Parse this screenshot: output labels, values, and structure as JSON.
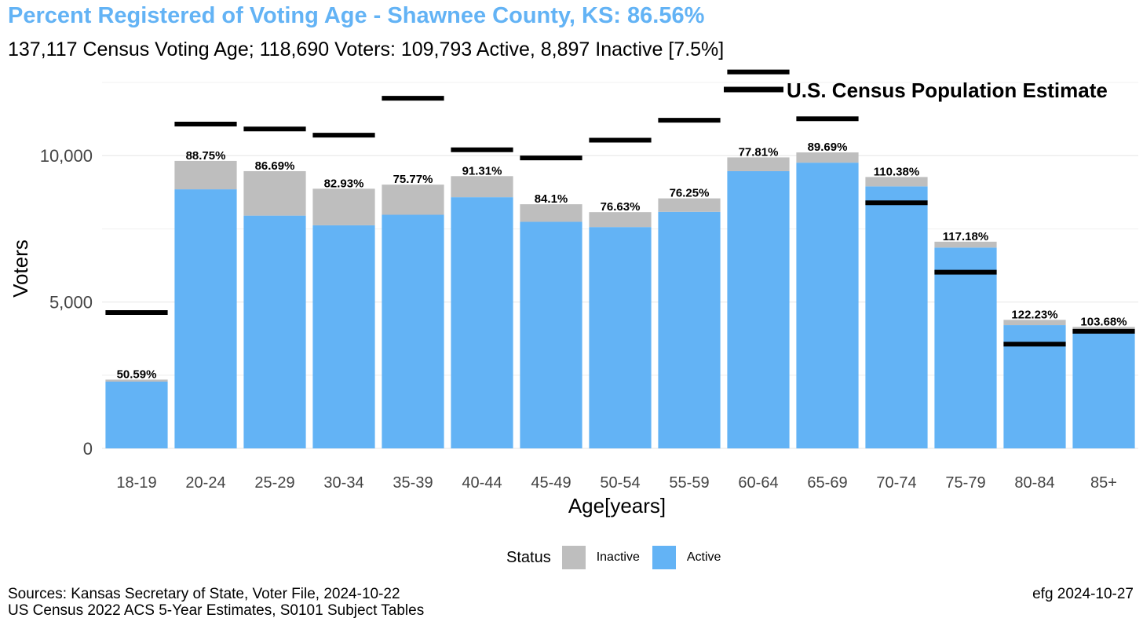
{
  "title": "Percent Registered of Voting Age - Shawnee County, KS: 86.56%",
  "subtitle": "137,117 Census Voting Age; 118,690 Voters:  109,793 Active, 8,897 Inactive [7.5%]",
  "legend": {
    "title": "Status",
    "items": [
      {
        "label": "Inactive",
        "color": "#BEBEBE"
      },
      {
        "label": "Active",
        "color": "#63B3F5"
      }
    ],
    "census_label": "U.S. Census Population Estimate"
  },
  "sources": [
    "Sources: Kansas Secretary of State, Voter File, 2024-10-22",
    "US Census 2022 ACS 5-Year Estimates, S0101 Subject Tables"
  ],
  "credit": "efg 2024-10-27",
  "chart_data": {
    "type": "bar",
    "stacked": true,
    "xlabel": "Age[years]",
    "ylabel": "Voters",
    "ylim": [
      0,
      12500
    ],
    "yticks": [
      0,
      5000,
      10000
    ],
    "ytick_labels": [
      "0",
      "5,000",
      "10,000"
    ],
    "grid": true,
    "categories": [
      "18-19",
      "20-24",
      "25-29",
      "30-34",
      "35-39",
      "40-44",
      "45-49",
      "50-54",
      "55-59",
      "60-64",
      "65-69",
      "70-74",
      "75-79",
      "80-84",
      "85+"
    ],
    "series": [
      {
        "name": "Active",
        "color": "#63B3F5",
        "values": [
          2280,
          8850,
          7950,
          7620,
          7980,
          8580,
          7740,
          7560,
          8080,
          9470,
          9760,
          8950,
          6860,
          4210,
          4000
        ]
      },
      {
        "name": "Inactive",
        "color": "#BEBEBE",
        "values": [
          70,
          970,
          1520,
          1250,
          1030,
          720,
          600,
          510,
          460,
          470,
          350,
          320,
          200,
          180,
          150
        ]
      }
    ],
    "census_population": [
      4640,
      11080,
      10910,
      10700,
      11960,
      10200,
      9920,
      10530,
      11210,
      12860,
      11260,
      8390,
      6020,
      3560,
      4000
    ],
    "percent_labels": [
      "50.59%",
      "88.75%",
      "86.69%",
      "82.93%",
      "75.77%",
      "91.31%",
      "84.1%",
      "76.63%",
      "76.25%",
      "77.81%",
      "89.69%",
      "110.38%",
      "117.18%",
      "122.23%",
      "103.68%"
    ]
  }
}
